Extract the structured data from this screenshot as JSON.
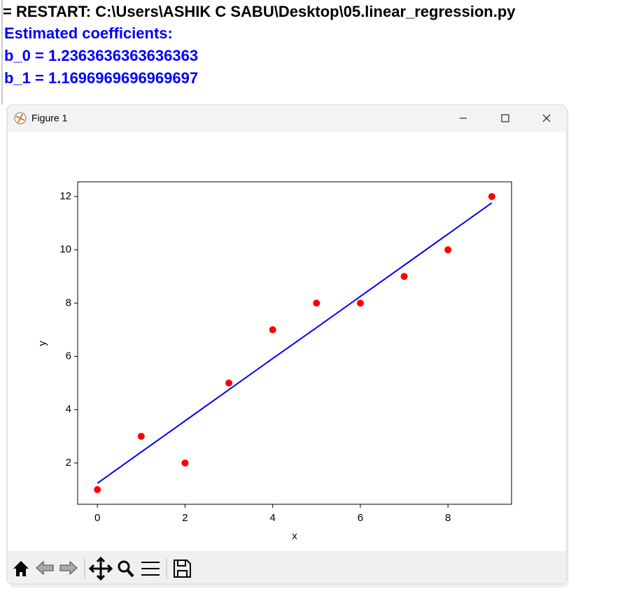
{
  "console": {
    "lines": [
      "= RESTART: C:\\Users\\ASHIK C SABU\\Desktop\\05.linear_regression.py",
      "Estimated coefficients:",
      "b_0 = 1.2363636363636363",
      "b_1 = 1.1696969696969697"
    ]
  },
  "window": {
    "title": "Figure 1"
  },
  "chart_data": {
    "type": "scatter",
    "x": [
      0,
      1,
      2,
      3,
      4,
      5,
      6,
      7,
      8,
      9
    ],
    "series": [
      {
        "type": "scatter",
        "color": "#ff0000",
        "values": [
          1,
          3,
          2,
          5,
          7,
          8,
          8,
          9,
          10,
          12
        ]
      },
      {
        "type": "line",
        "color": "#0000ff",
        "values": [
          1.24,
          2.41,
          3.58,
          4.75,
          5.92,
          7.08,
          8.25,
          9.42,
          10.59,
          11.76
        ]
      }
    ],
    "xlabel": "x",
    "ylabel": "y",
    "xlim": [
      -0.45,
      9.45
    ],
    "ylim": [
      0.45,
      12.55
    ],
    "xticks": [
      0,
      2,
      4,
      6,
      8
    ],
    "yticks": [
      2,
      4,
      6,
      8,
      10,
      12
    ]
  }
}
